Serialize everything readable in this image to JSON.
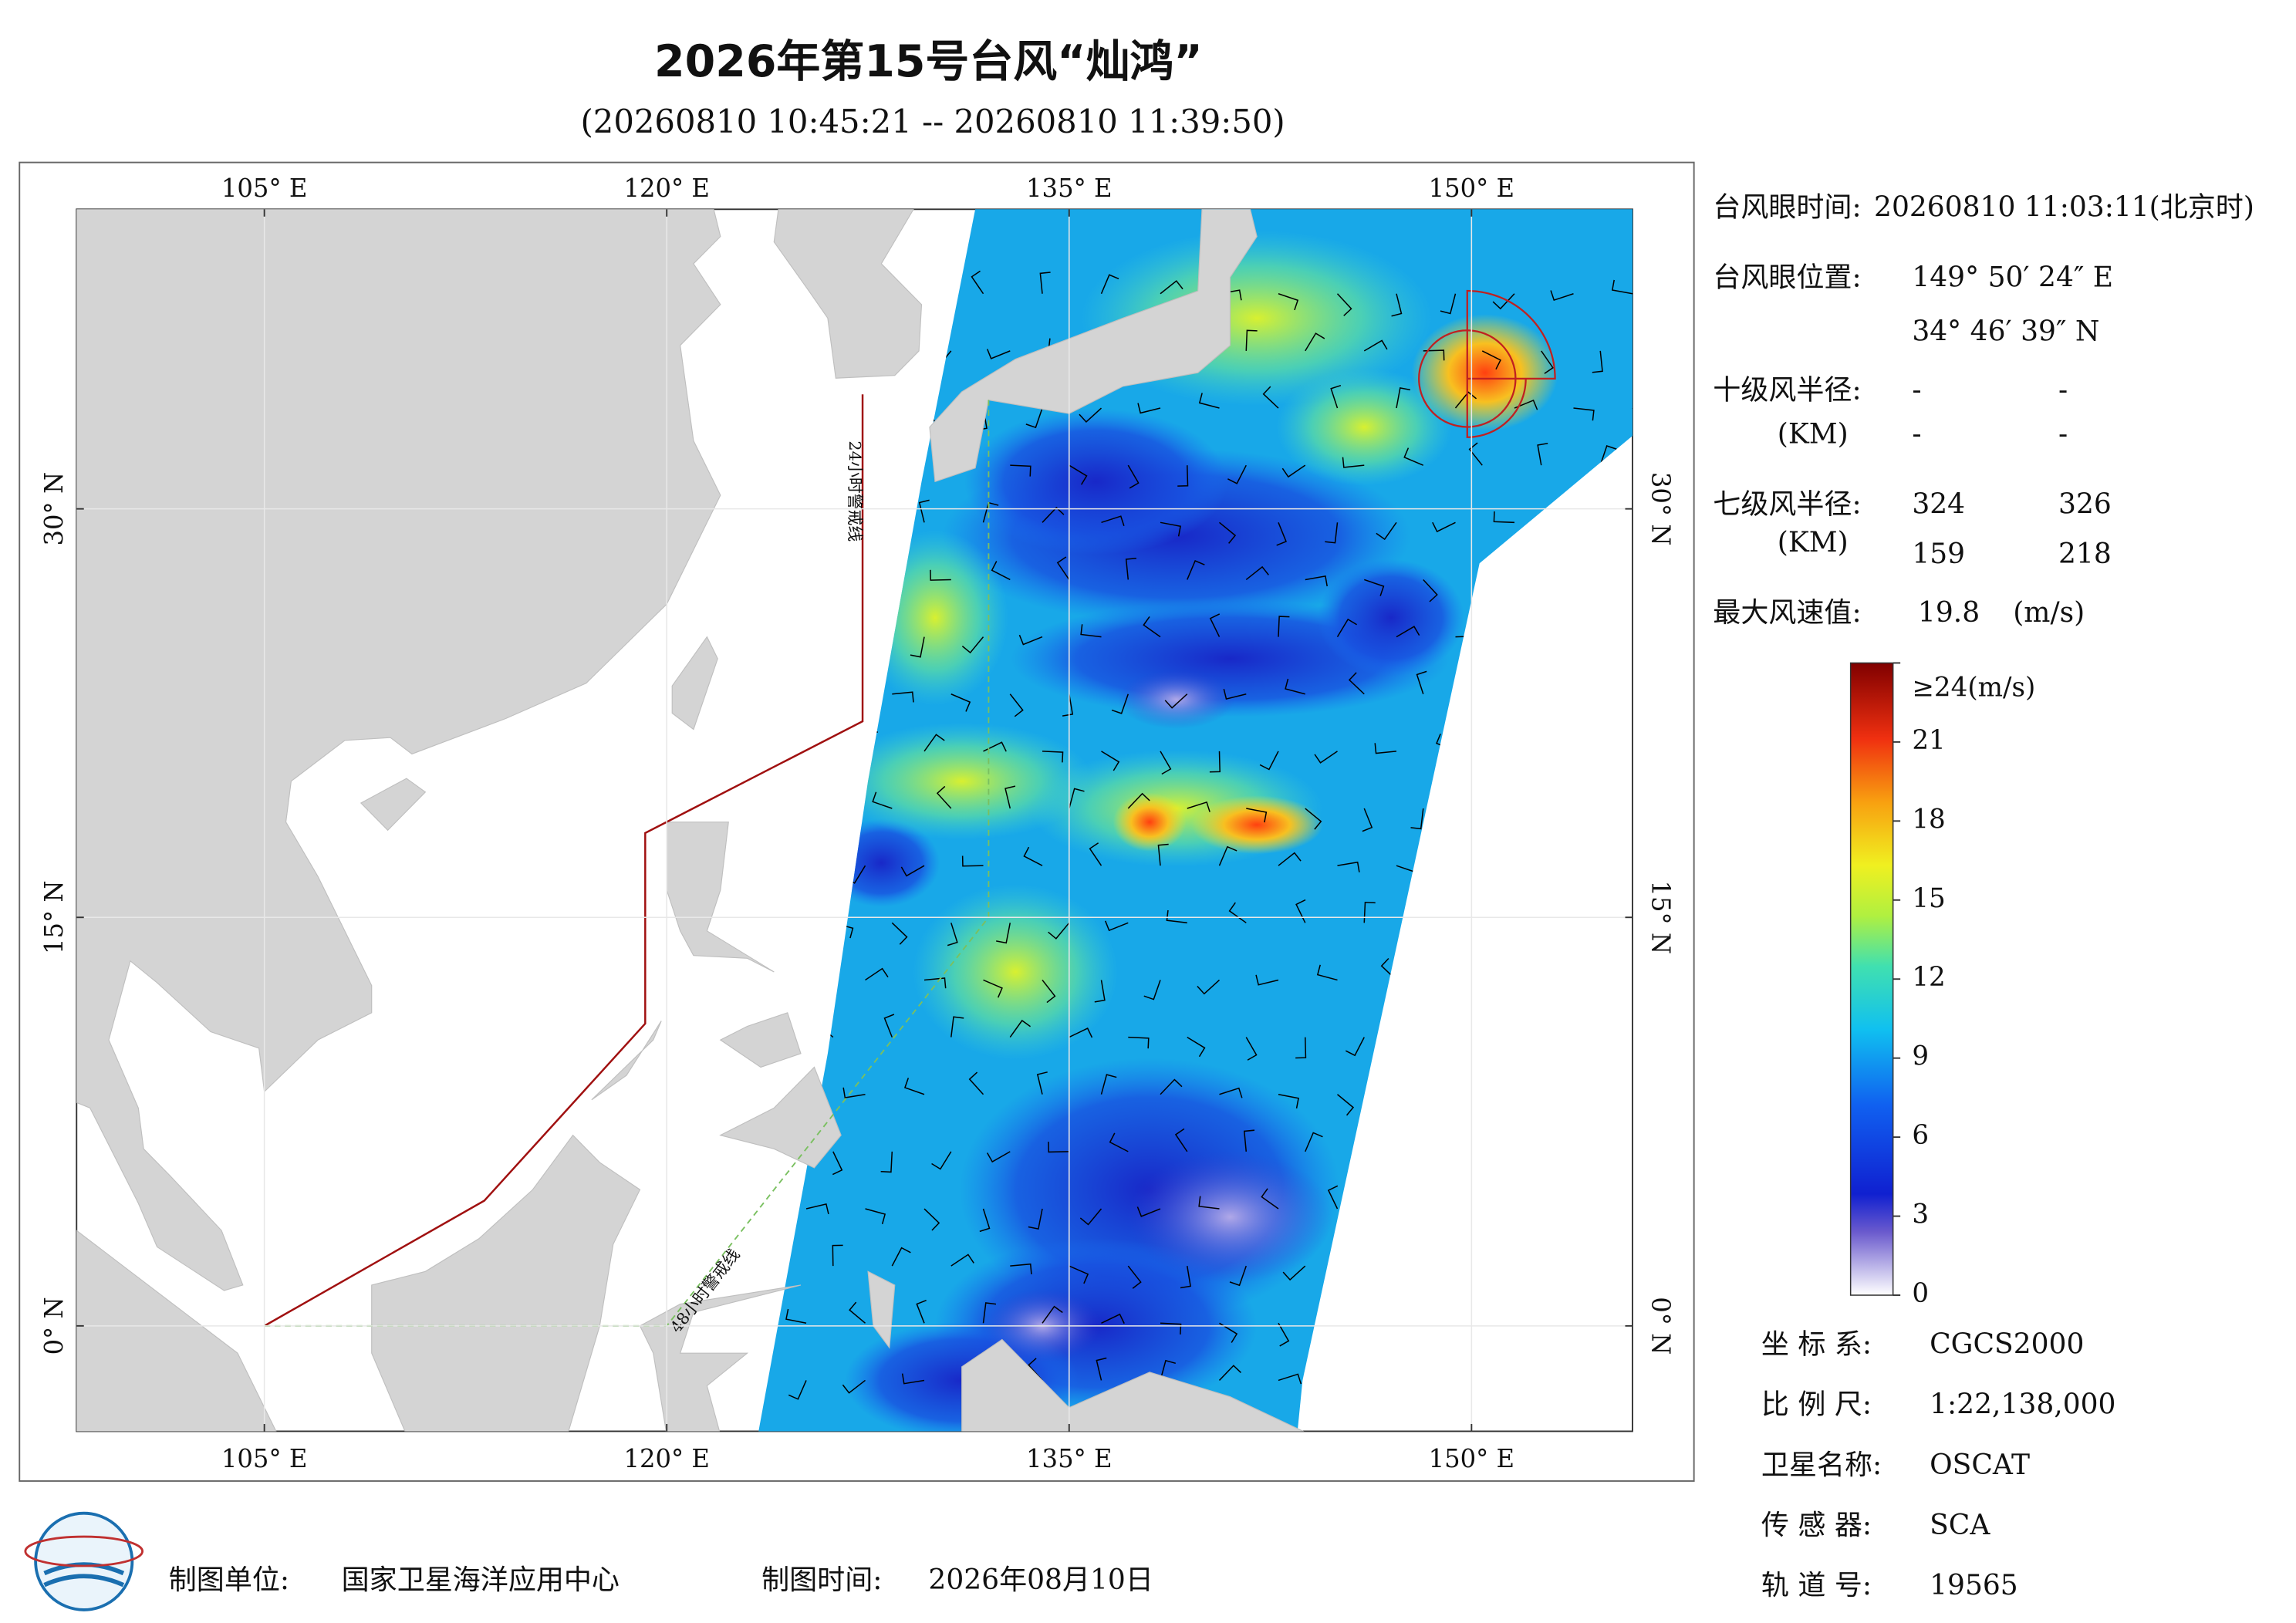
{
  "title": "2026年第15号台风“灿鸿”",
  "subtitle": "(20260810 10:45:21 -- 20260810 11:39:50)",
  "map": {
    "xlim": [
      98,
      156
    ],
    "ylim": [
      -3.87,
      41
    ],
    "xticks": [
      {
        "value": 105,
        "label": "105° E"
      },
      {
        "value": 120,
        "label": "120° E"
      },
      {
        "value": 135,
        "label": "135° E"
      },
      {
        "value": 150,
        "label": "150° E"
      }
    ],
    "yticks": [
      {
        "value": 0,
        "label": "0° N"
      },
      {
        "value": 15,
        "label": "15° N"
      },
      {
        "value": 30,
        "label": "30° N"
      }
    ],
    "warning_24h": "24小时警戒线",
    "warning_48h": "48小时警戒线"
  },
  "info": {
    "eye_time": {
      "label": "台风眼时间:",
      "value": "20260810 11:03:11(北京时)"
    },
    "eye_position": {
      "label": "台风眼位置:",
      "lon": "149° 50′ 24″ E",
      "lat": "34° 46′ 39″ N"
    },
    "r10": {
      "label": "十级风半径:",
      "unit": "(KM)",
      "values": [
        "-",
        "-",
        "-",
        "-"
      ]
    },
    "r7": {
      "label": "七级风半径:",
      "unit": "(KM)",
      "values": [
        324,
        326,
        159,
        218
      ]
    },
    "max_wind": {
      "label": "最大风速值:",
      "value": 19.8,
      "unit": "(m/s)"
    }
  },
  "colorbar": {
    "lim": [
      0,
      24
    ],
    "ticks": [
      {
        "value": 24,
        "label": "≥24(m/s)"
      },
      21,
      18,
      15,
      12,
      9,
      6,
      3,
      0
    ]
  },
  "meta": [
    {
      "label": "坐 标 系:",
      "value": "CGCS2000"
    },
    {
      "label": "比 例 尺:",
      "value": "1:22,138,000"
    },
    {
      "label": "卫星名称:",
      "value": "OSCAT"
    },
    {
      "label": "传 感 器:",
      "value": "SCA"
    },
    {
      "label": "轨 道 号:",
      "value": "19565"
    }
  ],
  "footer": {
    "unit_label": "制图单位:",
    "unit": "国家卫星海洋应用中心",
    "time_label": "制图时间:",
    "time": "2026年08月10日"
  }
}
